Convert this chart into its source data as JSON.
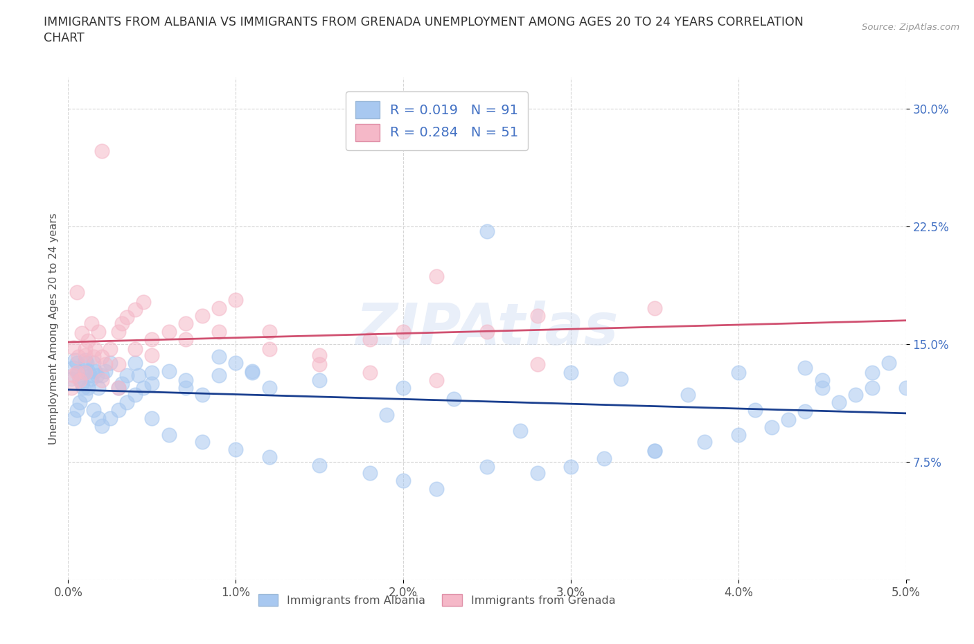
{
  "title_line1": "IMMIGRANTS FROM ALBANIA VS IMMIGRANTS FROM GRENADA UNEMPLOYMENT AMONG AGES 20 TO 24 YEARS CORRELATION",
  "title_line2": "CHART",
  "source": "Source: ZipAtlas.com",
  "ylabel": "Unemployment Among Ages 20 to 24 years",
  "xlim": [
    0.0,
    0.05
  ],
  "ylim": [
    0.0,
    0.32
  ],
  "xticks": [
    0.0,
    0.01,
    0.02,
    0.03,
    0.04,
    0.05
  ],
  "xticklabels": [
    "0.0%",
    "1.0%",
    "2.0%",
    "3.0%",
    "4.0%",
    "5.0%"
  ],
  "yticks": [
    0.0,
    0.075,
    0.15,
    0.225,
    0.3
  ],
  "yticklabels": [
    "",
    "7.5%",
    "15.0%",
    "22.5%",
    "30.0%"
  ],
  "color_albania": "#a8c8f0",
  "color_grenada": "#f5b8c8",
  "line_color_albania": "#1a3f8f",
  "line_color_grenada": "#d05070",
  "R_albania": 0.019,
  "N_albania": 91,
  "R_grenada": 0.284,
  "N_grenada": 51,
  "watermark": "ZIPAtlas",
  "background_color": "#ffffff",
  "grid_color": "#cccccc",
  "albania_x": [
    0.0002,
    0.0003,
    0.0004,
    0.0005,
    0.0006,
    0.0007,
    0.0008,
    0.0009,
    0.001,
    0.0011,
    0.0012,
    0.0013,
    0.0014,
    0.0015,
    0.0016,
    0.0017,
    0.0018,
    0.002,
    0.0022,
    0.0025,
    0.003,
    0.0032,
    0.0035,
    0.004,
    0.0042,
    0.0045,
    0.005,
    0.006,
    0.007,
    0.008,
    0.009,
    0.01,
    0.011,
    0.012,
    0.0003,
    0.0005,
    0.0007,
    0.001,
    0.0012,
    0.0015,
    0.0018,
    0.002,
    0.0025,
    0.003,
    0.0035,
    0.004,
    0.005,
    0.006,
    0.008,
    0.01,
    0.012,
    0.015,
    0.018,
    0.02,
    0.022,
    0.025,
    0.028,
    0.03,
    0.032,
    0.035,
    0.038,
    0.04,
    0.042,
    0.043,
    0.044,
    0.045,
    0.046,
    0.047,
    0.048,
    0.049,
    0.005,
    0.007,
    0.009,
    0.011,
    0.015,
    0.02,
    0.025,
    0.03,
    0.035,
    0.04,
    0.045,
    0.048,
    0.05,
    0.001,
    0.019,
    0.023,
    0.027,
    0.033,
    0.037,
    0.041,
    0.044
  ],
  "albania_y": [
    0.128,
    0.135,
    0.14,
    0.138,
    0.132,
    0.128,
    0.125,
    0.122,
    0.14,
    0.138,
    0.133,
    0.13,
    0.128,
    0.138,
    0.133,
    0.13,
    0.122,
    0.13,
    0.133,
    0.138,
    0.122,
    0.125,
    0.13,
    0.138,
    0.13,
    0.122,
    0.125,
    0.133,
    0.122,
    0.118,
    0.13,
    0.138,
    0.133,
    0.122,
    0.103,
    0.108,
    0.113,
    0.118,
    0.122,
    0.108,
    0.103,
    0.098,
    0.103,
    0.108,
    0.113,
    0.118,
    0.103,
    0.092,
    0.088,
    0.083,
    0.078,
    0.073,
    0.068,
    0.063,
    0.058,
    0.072,
    0.068,
    0.072,
    0.077,
    0.082,
    0.088,
    0.092,
    0.097,
    0.102,
    0.107,
    0.122,
    0.113,
    0.118,
    0.132,
    0.138,
    0.132,
    0.127,
    0.142,
    0.132,
    0.127,
    0.122,
    0.222,
    0.132,
    0.082,
    0.132,
    0.127,
    0.122,
    0.122,
    0.132,
    0.105,
    0.115,
    0.095,
    0.128,
    0.118,
    0.108,
    0.135
  ],
  "grenada_x": [
    0.0002,
    0.0003,
    0.0005,
    0.0006,
    0.0008,
    0.001,
    0.0012,
    0.0014,
    0.0015,
    0.0016,
    0.0018,
    0.002,
    0.0022,
    0.0025,
    0.003,
    0.0032,
    0.0035,
    0.004,
    0.0045,
    0.005,
    0.006,
    0.007,
    0.008,
    0.009,
    0.01,
    0.012,
    0.015,
    0.018,
    0.02,
    0.022,
    0.025,
    0.028,
    0.001,
    0.002,
    0.003,
    0.004,
    0.005,
    0.007,
    0.009,
    0.012,
    0.015,
    0.018,
    0.022,
    0.028,
    0.035,
    0.0003,
    0.0005,
    0.0007,
    0.001,
    0.002,
    0.003
  ],
  "grenada_y": [
    0.122,
    0.13,
    0.183,
    0.142,
    0.157,
    0.147,
    0.152,
    0.163,
    0.142,
    0.147,
    0.158,
    0.142,
    0.137,
    0.147,
    0.158,
    0.163,
    0.167,
    0.172,
    0.177,
    0.153,
    0.158,
    0.163,
    0.168,
    0.173,
    0.178,
    0.158,
    0.143,
    0.153,
    0.158,
    0.193,
    0.158,
    0.168,
    0.132,
    0.127,
    0.137,
    0.147,
    0.143,
    0.153,
    0.158,
    0.147,
    0.137,
    0.132,
    0.127,
    0.137,
    0.173,
    0.148,
    0.132,
    0.127,
    0.143,
    0.273,
    0.122
  ]
}
